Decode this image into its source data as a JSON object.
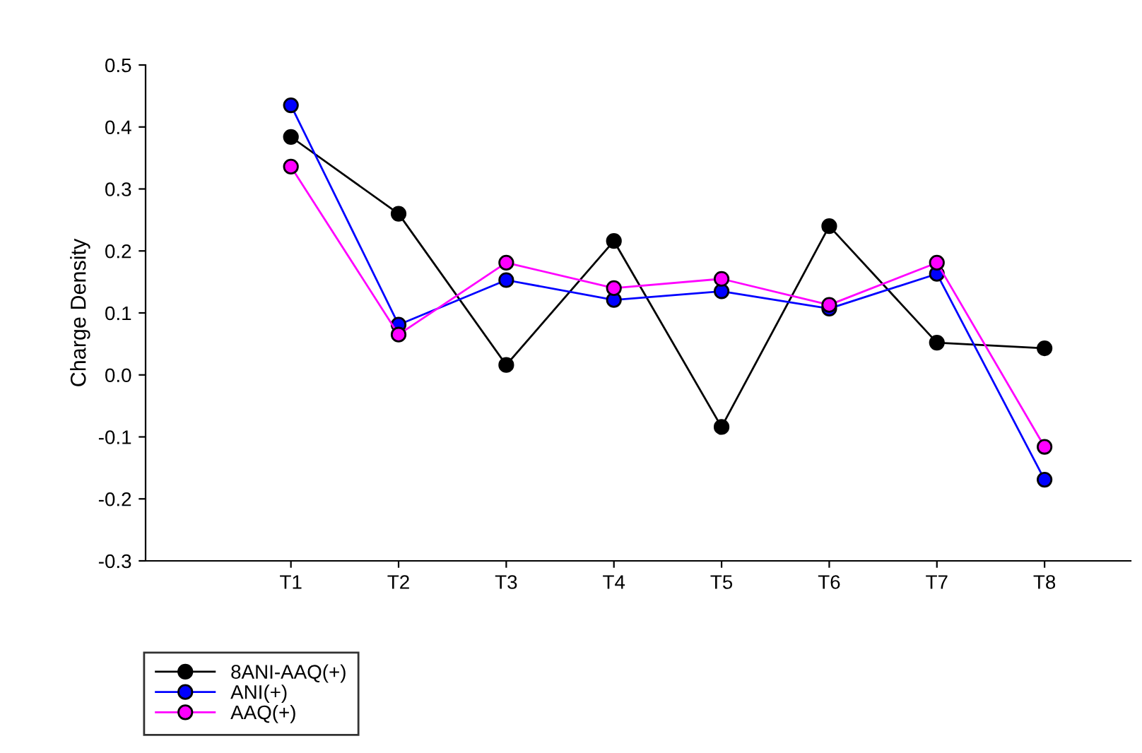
{
  "chart_data": {
    "type": "line",
    "ylabel": "Charge Density",
    "categories": [
      "T1",
      "T2",
      "T3",
      "T4",
      "T5",
      "T6",
      "T7",
      "T8"
    ],
    "series": [
      {
        "name": "8ANI-AAQ(+)",
        "color": "#000000",
        "values": [
          0.384,
          0.26,
          0.016,
          0.216,
          -0.084,
          0.24,
          0.052,
          0.043
        ]
      },
      {
        "name": "ANI(+)",
        "color": "#0000ff",
        "values": [
          0.435,
          0.081,
          0.153,
          0.121,
          0.135,
          0.107,
          0.163,
          -0.169
        ]
      },
      {
        "name": "AAQ(+)",
        "color": "#ff00ff",
        "values": [
          0.336,
          0.065,
          0.181,
          0.14,
          0.155,
          0.113,
          0.181,
          -0.116
        ]
      }
    ],
    "ylim": [
      -0.3,
      0.5
    ],
    "yticks": [
      -0.3,
      -0.2,
      -0.1,
      {
        "value": 0,
        "label": "0.0"
      },
      0.1,
      0.2,
      0.3,
      0.4,
      0.5
    ],
    "grid": false,
    "legend": "bottom left",
    "marker": "circle",
    "line_style": "solid"
  }
}
